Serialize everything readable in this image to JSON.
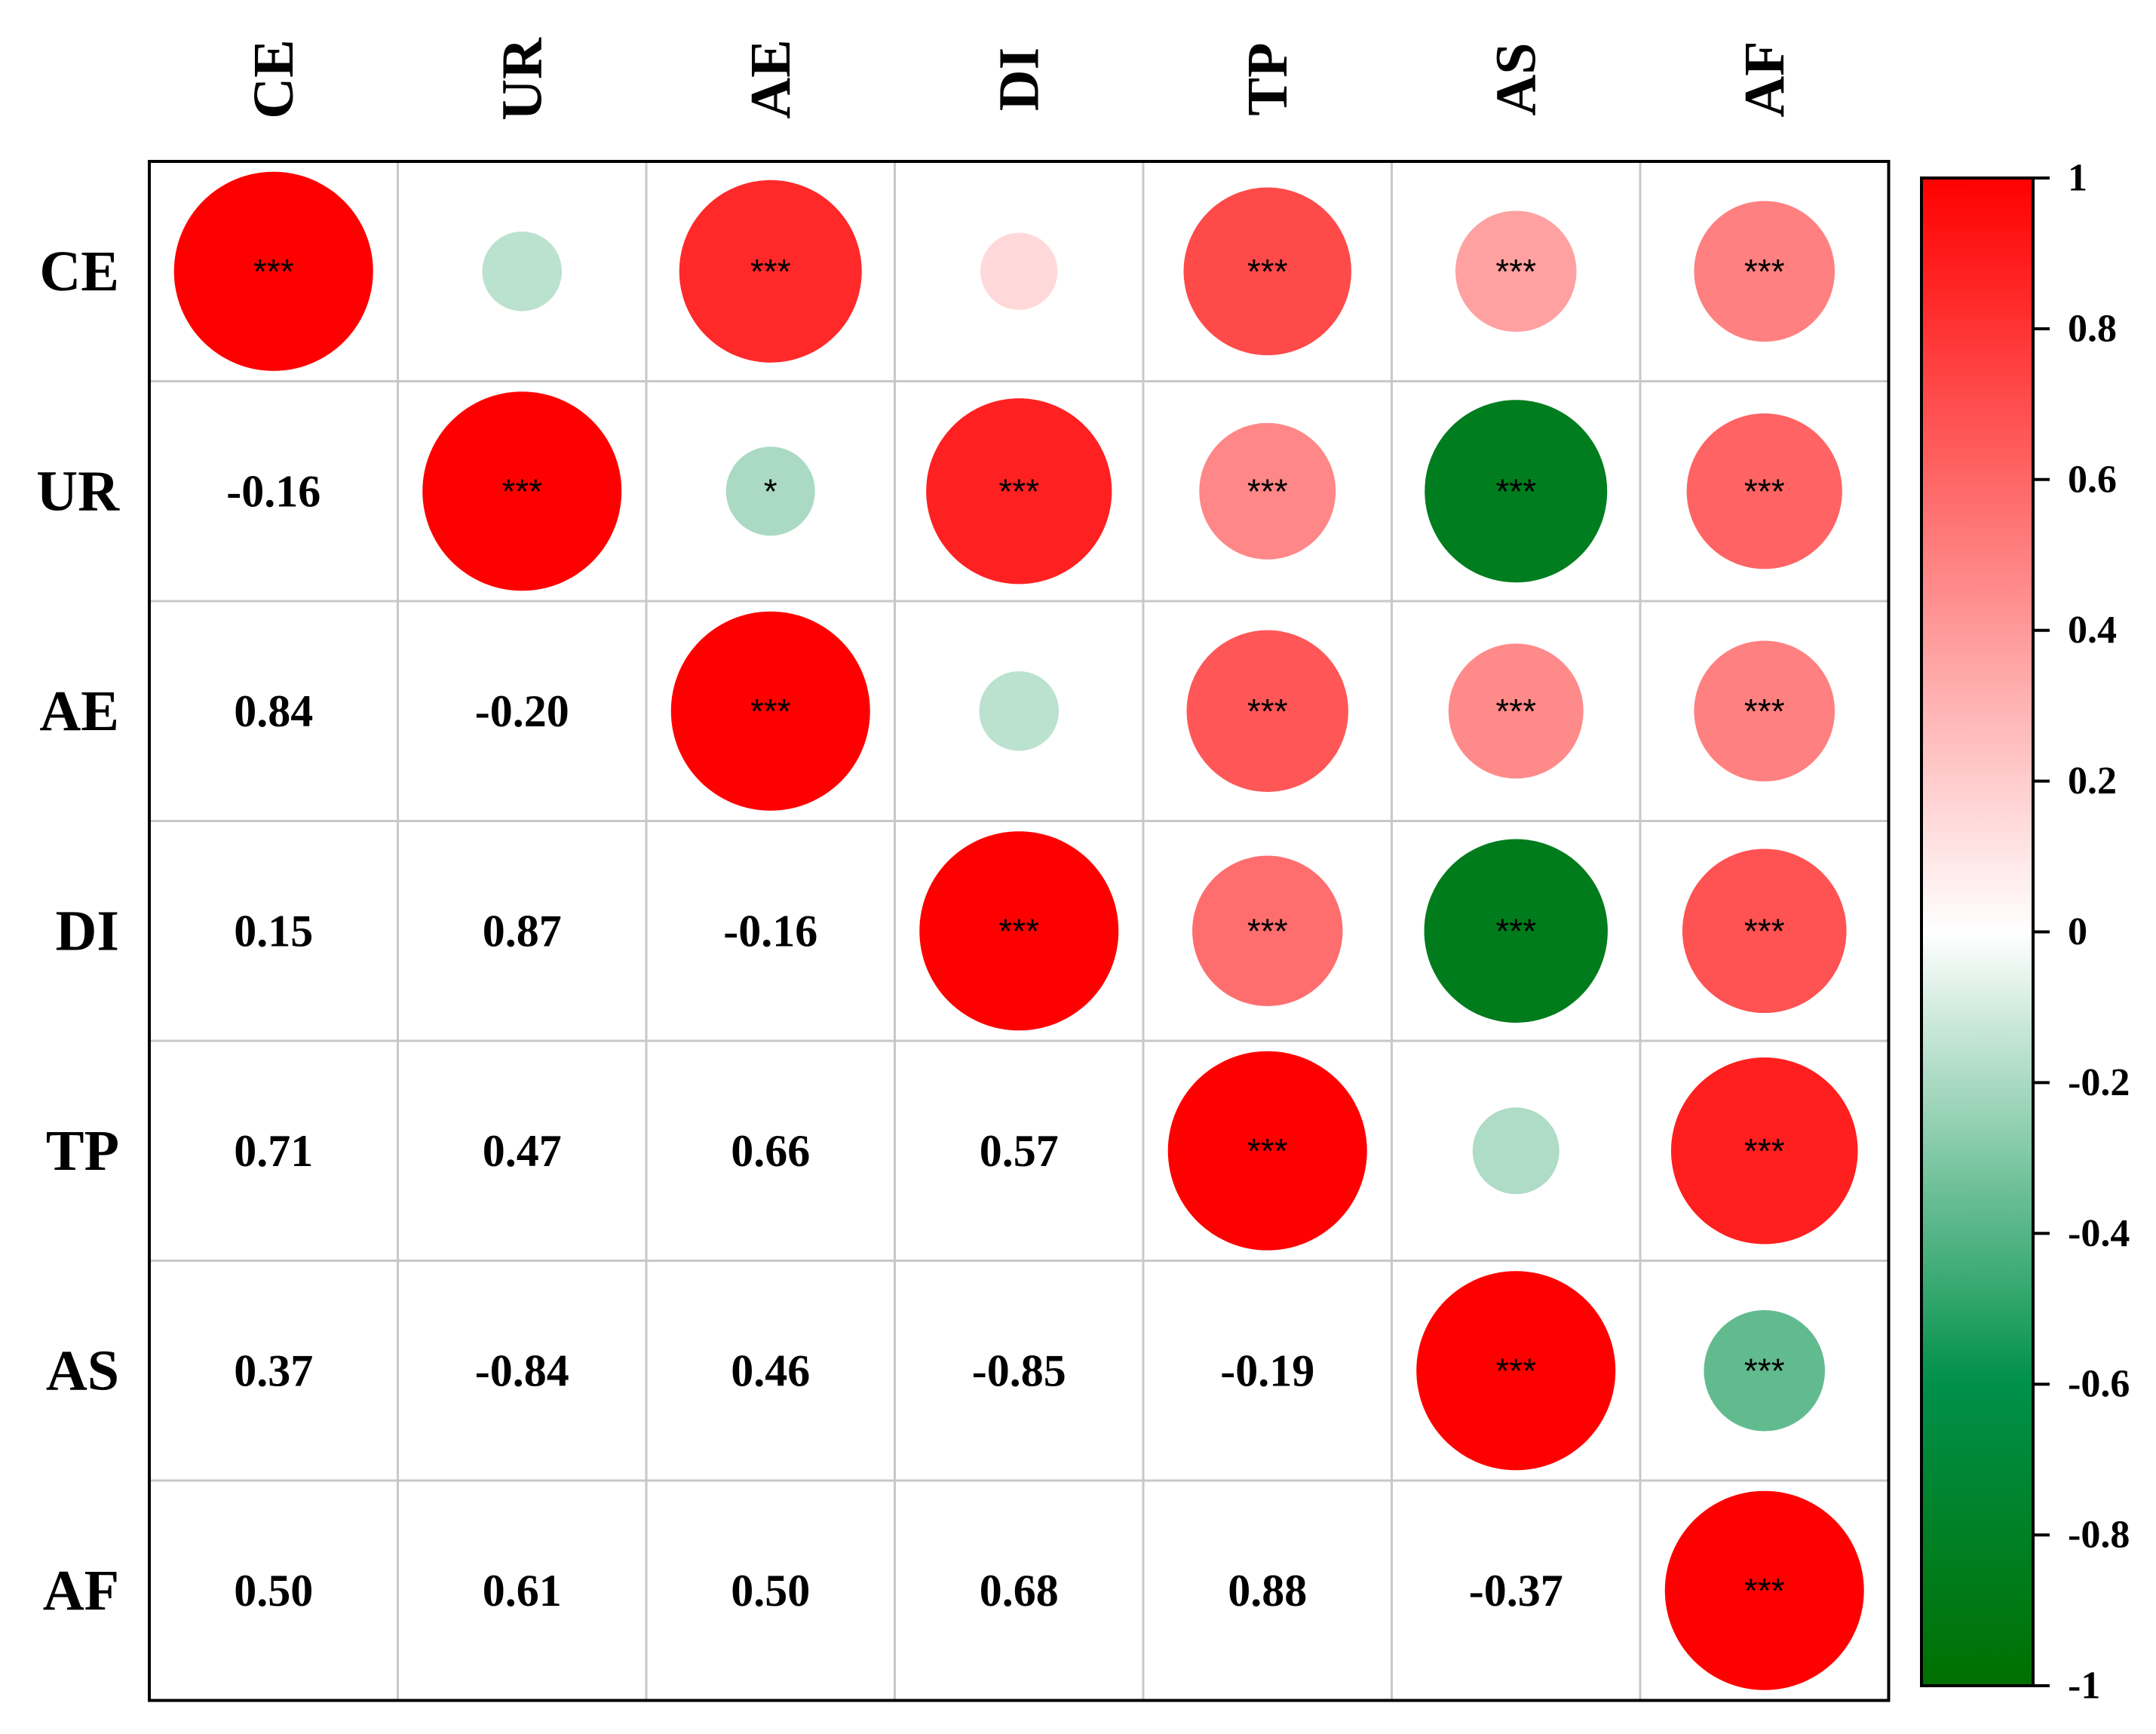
{
  "chart_data": {
    "type": "heatmap",
    "variables": [
      "CE",
      "UR",
      "AE",
      "DI",
      "TP",
      "AS",
      "AF"
    ],
    "correlation_matrix": [
      [
        1.0,
        -0.16,
        0.84,
        0.15,
        0.71,
        0.37,
        0.5
      ],
      [
        -0.16,
        1.0,
        -0.2,
        0.87,
        0.47,
        -0.84,
        0.61
      ],
      [
        0.84,
        -0.2,
        1.0,
        -0.16,
        0.66,
        0.46,
        0.5
      ],
      [
        0.15,
        0.87,
        -0.16,
        1.0,
        0.57,
        -0.85,
        0.68
      ],
      [
        0.71,
        0.47,
        0.66,
        0.57,
        1.0,
        -0.19,
        0.88
      ],
      [
        0.37,
        -0.84,
        0.46,
        -0.85,
        -0.19,
        1.0,
        -0.37
      ],
      [
        0.5,
        0.61,
        0.5,
        0.68,
        0.88,
        -0.37,
        1.0
      ]
    ],
    "lower_labels": [
      [],
      [
        "-0.16"
      ],
      [
        "0.84",
        "-0.20"
      ],
      [
        "0.15",
        "0.87",
        "-0.16"
      ],
      [
        "0.71",
        "0.47",
        "0.66",
        "0.57"
      ],
      [
        "0.37",
        "-0.84",
        "0.46",
        "-0.85",
        "-0.19"
      ],
      [
        "0.50",
        "0.61",
        "0.50",
        "0.68",
        "0.88",
        "-0.37"
      ]
    ],
    "significance": [
      [
        "***",
        "",
        "***",
        "",
        "***",
        "***",
        "***"
      ],
      [
        "",
        "***",
        "*",
        "***",
        "***",
        "***",
        "***"
      ],
      [
        "",
        "",
        "***",
        "",
        "***",
        "***",
        "***"
      ],
      [
        "",
        "",
        "",
        "***",
        "***",
        "***",
        "***"
      ],
      [
        "",
        "",
        "",
        "",
        "***",
        "",
        "***"
      ],
      [
        "",
        "",
        "",
        "",
        "",
        "***",
        "***"
      ],
      [
        "",
        "",
        "",
        "",
        "",
        "",
        "***"
      ]
    ],
    "upper_display": "circle",
    "lower_display": "number",
    "color_scale": {
      "range": [
        -1,
        1
      ],
      "colors": {
        "-1": "#007000",
        "-0.6": "#00904a",
        "0": "#ffffff",
        "1": "#ff0000"
      },
      "ticks": [
        "1",
        "0.8",
        "0.6",
        "0.4",
        "0.2",
        "0",
        "-0.2",
        "-0.4",
        "-0.6",
        "-0.8",
        "-1"
      ]
    },
    "grid": true,
    "legend_position": "right"
  }
}
